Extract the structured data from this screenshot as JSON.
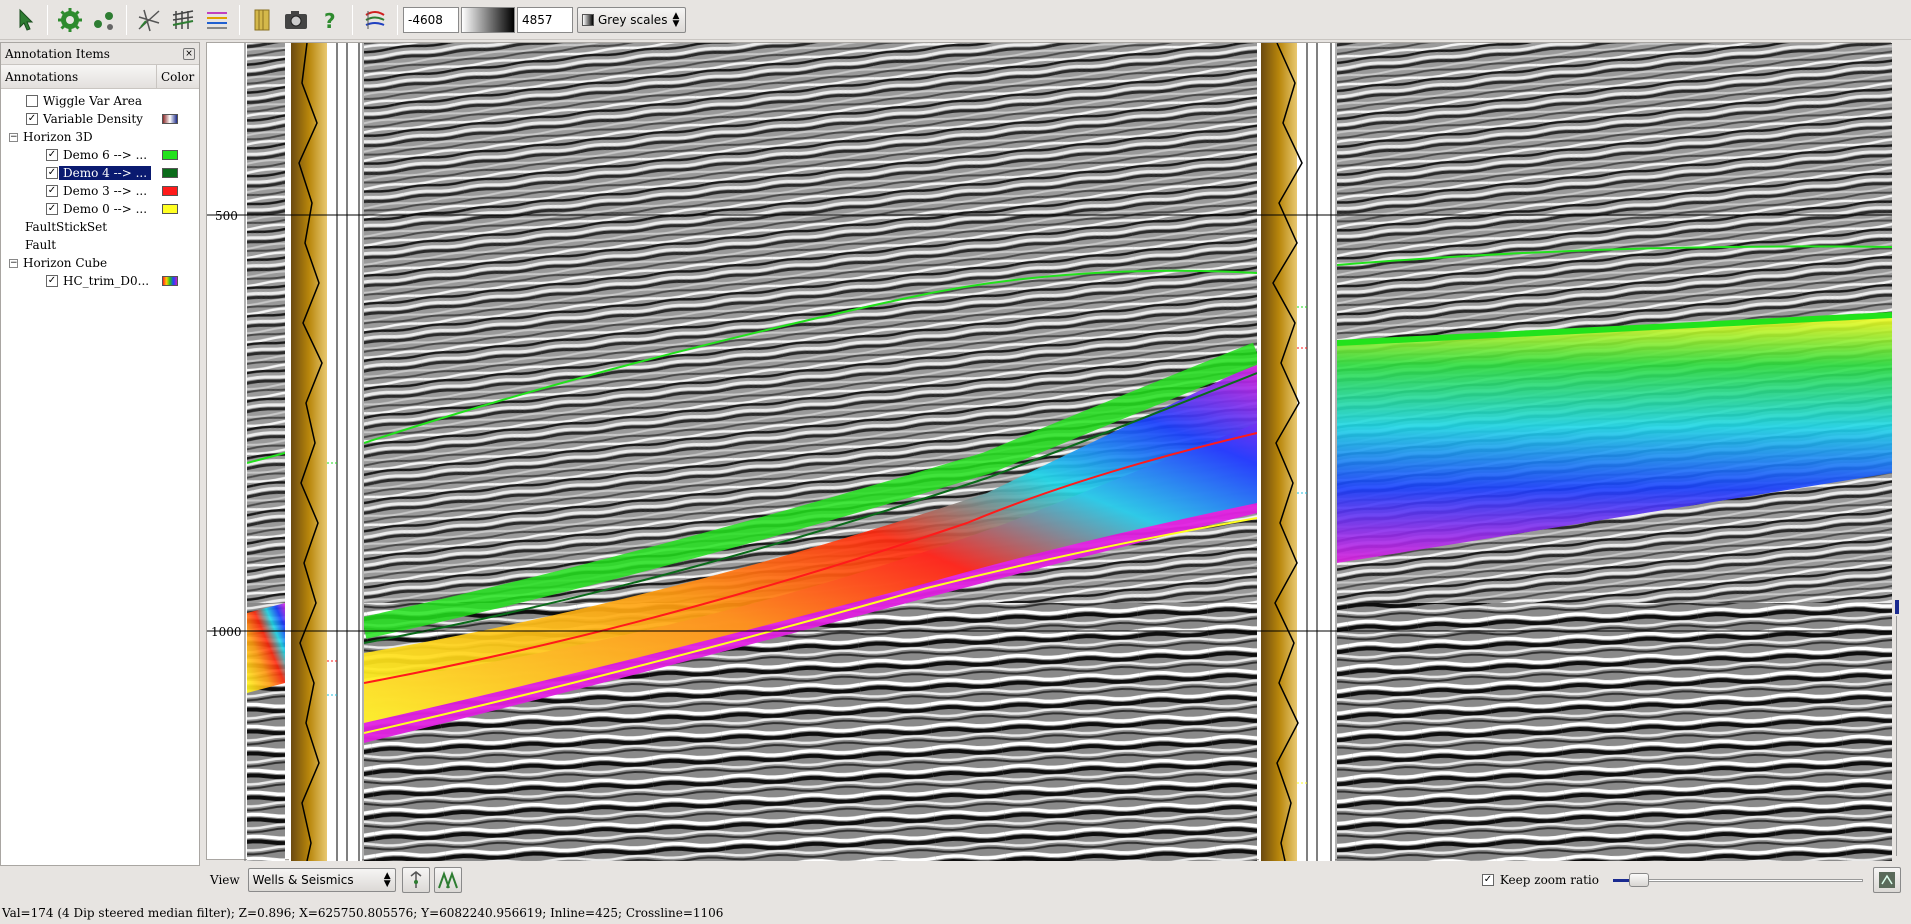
{
  "toolbar": {
    "buttons": [
      "pointer-icon",
      "display-settings-icon",
      "well-ties-icon",
      "fault-tool-icon",
      "horizon-tool-icon",
      "log-track-icon",
      "colorbar-icon",
      "snapshot-icon",
      "help-icon",
      "flatten-icon"
    ],
    "clip_min": "-4608",
    "clip_max": "4857",
    "colortable": "Grey scales"
  },
  "panel": {
    "title": "Annotation Items",
    "col_annotations": "Annotations",
    "col_color": "Color",
    "items": [
      {
        "label": "Wiggle Var Area",
        "level": 1,
        "checkbox": true,
        "checked": false,
        "colors": []
      },
      {
        "label": "Variable Density",
        "level": 1,
        "checkbox": true,
        "checked": true,
        "colors": [
          "#8b2a2a",
          "#ffffff",
          "#1f2c8a"
        ]
      },
      {
        "label": "Horizon 3D",
        "level": 0,
        "expander": "−",
        "checkbox": false,
        "colors": []
      },
      {
        "label": "Demo 6 --> ...",
        "level": 2,
        "checkbox": true,
        "checked": true,
        "colors": [
          "#22e21c"
        ]
      },
      {
        "label": "Demo 4 --> ...",
        "level": 2,
        "checkbox": true,
        "checked": true,
        "selected": true,
        "colors": [
          "#0a6b1a"
        ]
      },
      {
        "label": "Demo 3  --> ...",
        "level": 2,
        "checkbox": true,
        "checked": true,
        "colors": [
          "#ff1a1a"
        ]
      },
      {
        "label": "Demo 0 --> ...",
        "level": 2,
        "checkbox": true,
        "checked": true,
        "colors": [
          "#ffff22"
        ]
      },
      {
        "label": "FaultStickSet",
        "level": 1,
        "checkbox": false,
        "colors": []
      },
      {
        "label": "Fault",
        "level": 1,
        "checkbox": false,
        "colors": []
      },
      {
        "label": "Horizon Cube",
        "level": 0,
        "expander": "−",
        "checkbox": false,
        "colors": []
      },
      {
        "label": "HC_trim_D0...",
        "level": 2,
        "checkbox": true,
        "checked": true,
        "colors": [
          "#ff2020",
          "#ffd000",
          "#20c020",
          "#2040ff",
          "#c020c0"
        ]
      }
    ]
  },
  "viewer": {
    "depth_labels": [
      "500",
      "1000"
    ],
    "horizon_colors": {
      "demo6": "#22e21c",
      "demo4": "#0a6b1a",
      "demo3": "#ff1a1a",
      "demo0": "#ffff22"
    },
    "log_color": "#b8860b"
  },
  "bottom": {
    "view_label": "View",
    "view_value": "Wells & Seismics",
    "keep_zoom_label": "Keep zoom ratio",
    "keep_zoom_checked": true
  },
  "status": "Val=174 (4 Dip steered median filter); Z=0.896; X=625750.805576; Y=6082240.956619; Inline=425; Crossline=1106"
}
